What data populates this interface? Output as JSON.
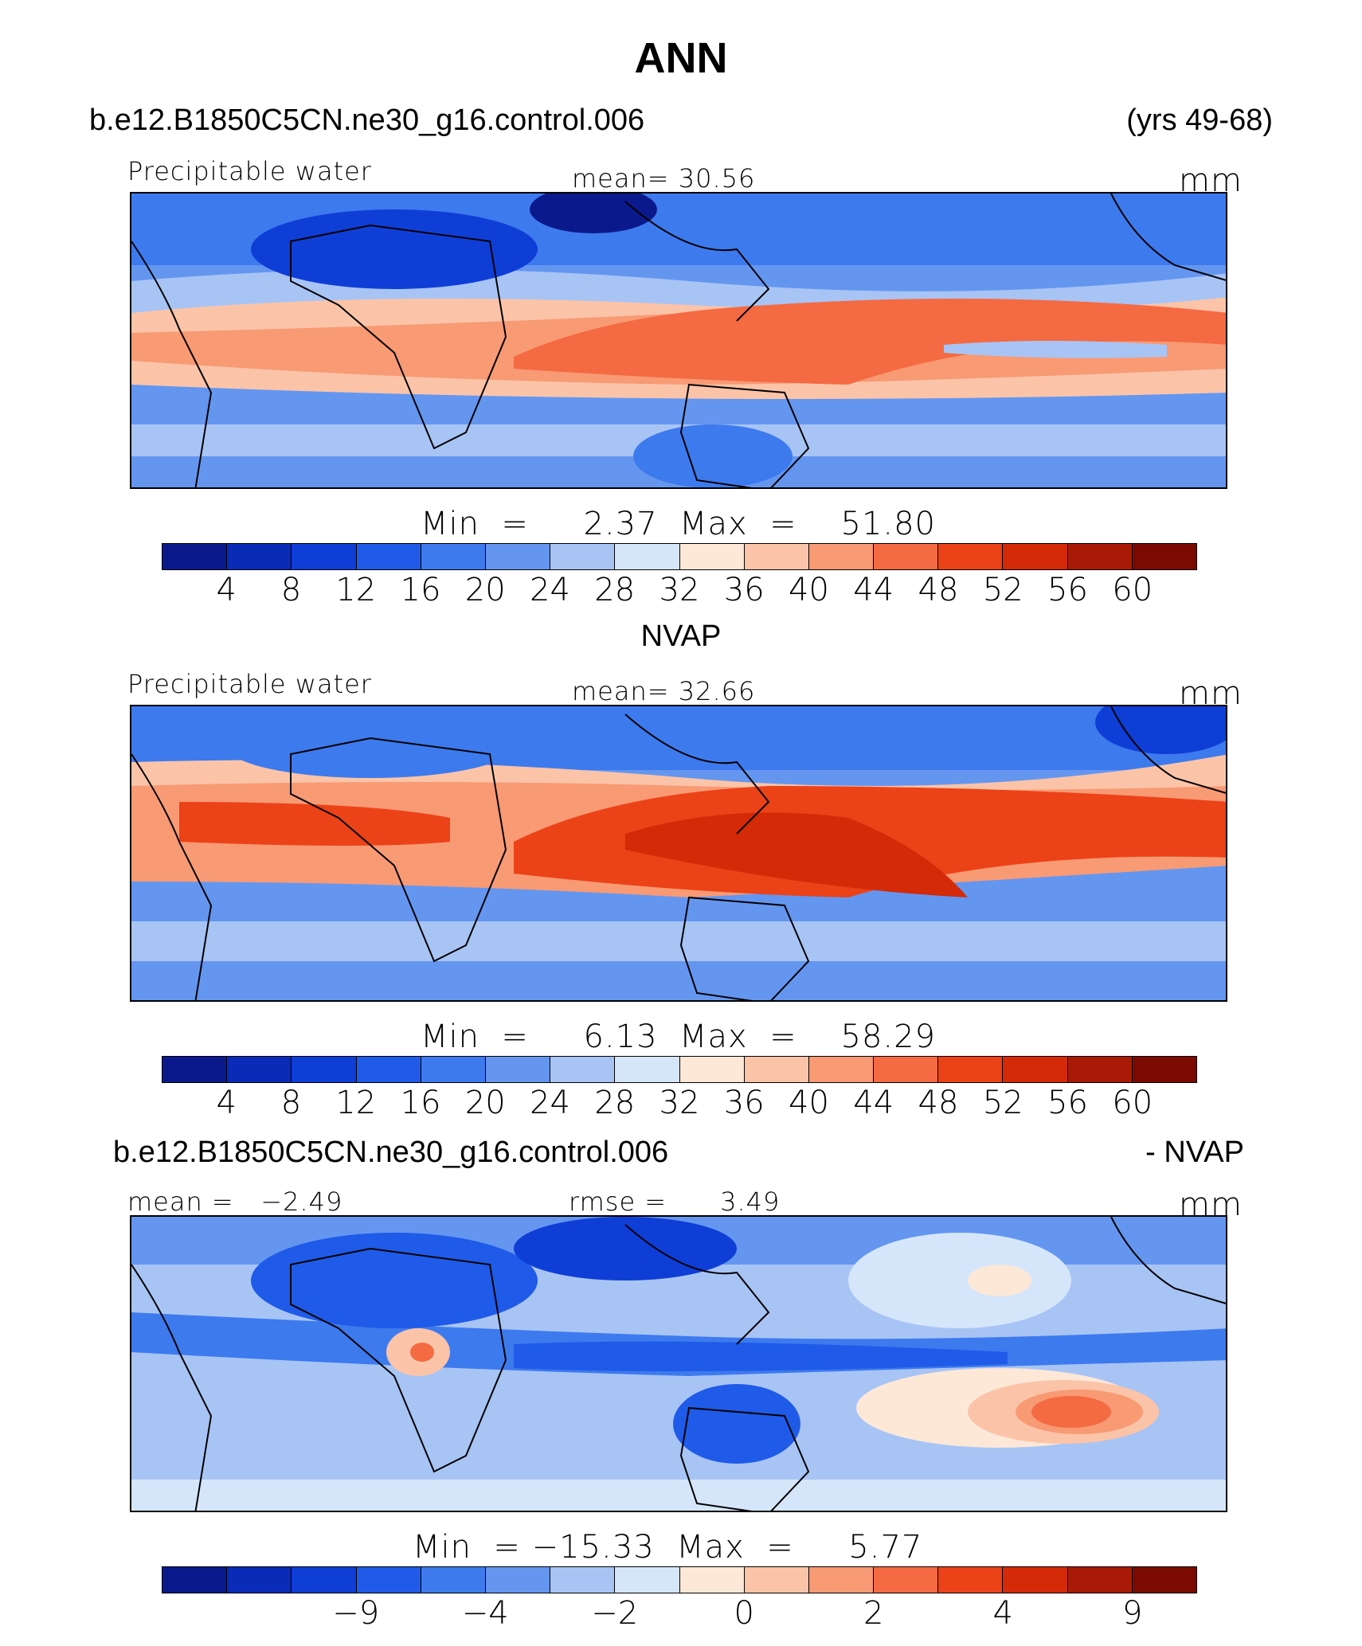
{
  "title": "ANN",
  "header": {
    "case_name": "b.e12.B1850C5CN.ne30_g16.control.006",
    "years": "(yrs 49-68)"
  },
  "colors": [
    "#0a1a8c",
    "#0a2ab8",
    "#0f3ed6",
    "#1f5be8",
    "#3d7aee",
    "#6496f0",
    "#a8c4f5",
    "#d6e6fa",
    "#fde8d8",
    "#fbc4a8",
    "#f89a74",
    "#f46a42",
    "#ec4218",
    "#d42a08",
    "#a81a06",
    "#7a0a02"
  ],
  "panels": [
    {
      "section_title": "",
      "left_label": "Precipitable water",
      "center_label": "mean=   30.56",
      "units": "mm",
      "stats": "Min  =     2.37  Max  =    51.80",
      "ticks": [
        "4",
        "8",
        "12",
        "16",
        "20",
        "24",
        "28",
        "32",
        "36",
        "40",
        "44",
        "48",
        "52",
        "56",
        "60"
      ],
      "field": "model"
    },
    {
      "section_title": "NVAP",
      "left_label": "Precipitable water",
      "center_label": "mean=   32.66",
      "units": "mm",
      "stats": "Min  =     6.13  Max  =    58.29",
      "ticks": [
        "4",
        "8",
        "12",
        "16",
        "20",
        "24",
        "28",
        "32",
        "36",
        "40",
        "44",
        "48",
        "52",
        "56",
        "60"
      ],
      "field": "obs"
    },
    {
      "section_title_left": "b.e12.B1850C5CN.ne30_g16.control.006",
      "section_title_right": "- NVAP",
      "left_label": "mean =   −2.49",
      "center_label": "rmse =      3.49",
      "units": "mm",
      "stats": "Min  = −15.33  Max  =     5.77",
      "ticks": [
        "",
        "",
        "−9",
        "",
        "−4",
        "",
        "−2",
        "",
        "0",
        "",
        "2",
        "",
        "4",
        "",
        "9",
        ""
      ],
      "field": "diff"
    }
  ]
}
